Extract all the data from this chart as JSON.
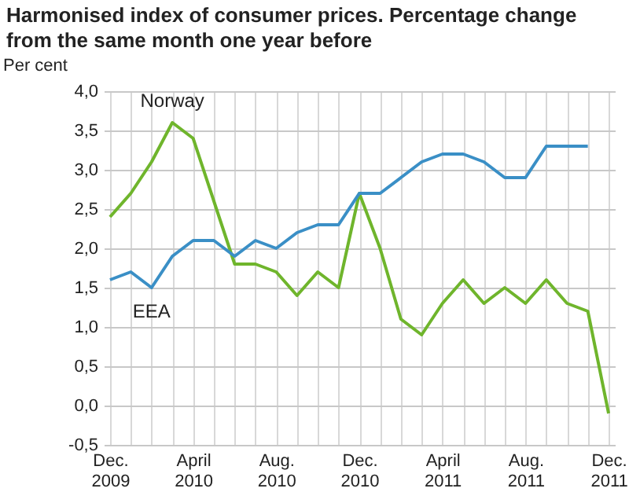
{
  "chart_data": {
    "type": "line",
    "title": "Harmonised index of consumer prices. Percentage change from the same month one year before",
    "ylabel": "Per cent",
    "categories": [
      "Dec. 2009",
      null,
      null,
      null,
      "April 2010",
      null,
      null,
      null,
      "Aug. 2010",
      null,
      null,
      null,
      "Dec. 2010",
      null,
      null,
      null,
      "April 2011",
      null,
      null,
      null,
      "Aug. 2011",
      null,
      null,
      null,
      "Dec. 2011"
    ],
    "series": [
      {
        "name": "Norway",
        "color": "#6fb52c",
        "values": [
          2.4,
          2.7,
          3.1,
          3.6,
          3.4,
          2.6,
          1.8,
          1.8,
          1.7,
          1.4,
          1.7,
          1.5,
          2.7,
          2.0,
          1.1,
          0.9,
          1.3,
          1.6,
          1.3,
          1.5,
          1.3,
          1.6,
          1.3,
          1.2,
          -0.1
        ]
      },
      {
        "name": "EEA",
        "color": "#3a8fc6",
        "values": [
          1.6,
          1.7,
          1.5,
          1.9,
          2.1,
          2.1,
          1.9,
          2.1,
          2.0,
          2.2,
          2.3,
          2.3,
          2.7,
          2.7,
          2.9,
          3.1,
          3.2,
          3.2,
          3.1,
          2.9,
          2.9,
          3.3,
          3.3,
          3.3,
          null
        ]
      }
    ],
    "ylim": [
      -0.5,
      4.0
    ],
    "yticks": [
      {
        "value": -0.5,
        "label": "-0,5"
      },
      {
        "value": 0,
        "label": "0,0"
      },
      {
        "value": 0.5,
        "label": "0,5"
      },
      {
        "value": 1,
        "label": "1,0"
      },
      {
        "value": 1.5,
        "label": "1,5"
      },
      {
        "value": 2,
        "label": "2,0"
      },
      {
        "value": 2.5,
        "label": "2,5"
      },
      {
        "value": 3,
        "label": "3,0"
      },
      {
        "value": 3.5,
        "label": "3,5"
      },
      {
        "value": 4,
        "label": "4,0"
      }
    ],
    "grid": true,
    "marker": "none",
    "line_style": "solid"
  }
}
